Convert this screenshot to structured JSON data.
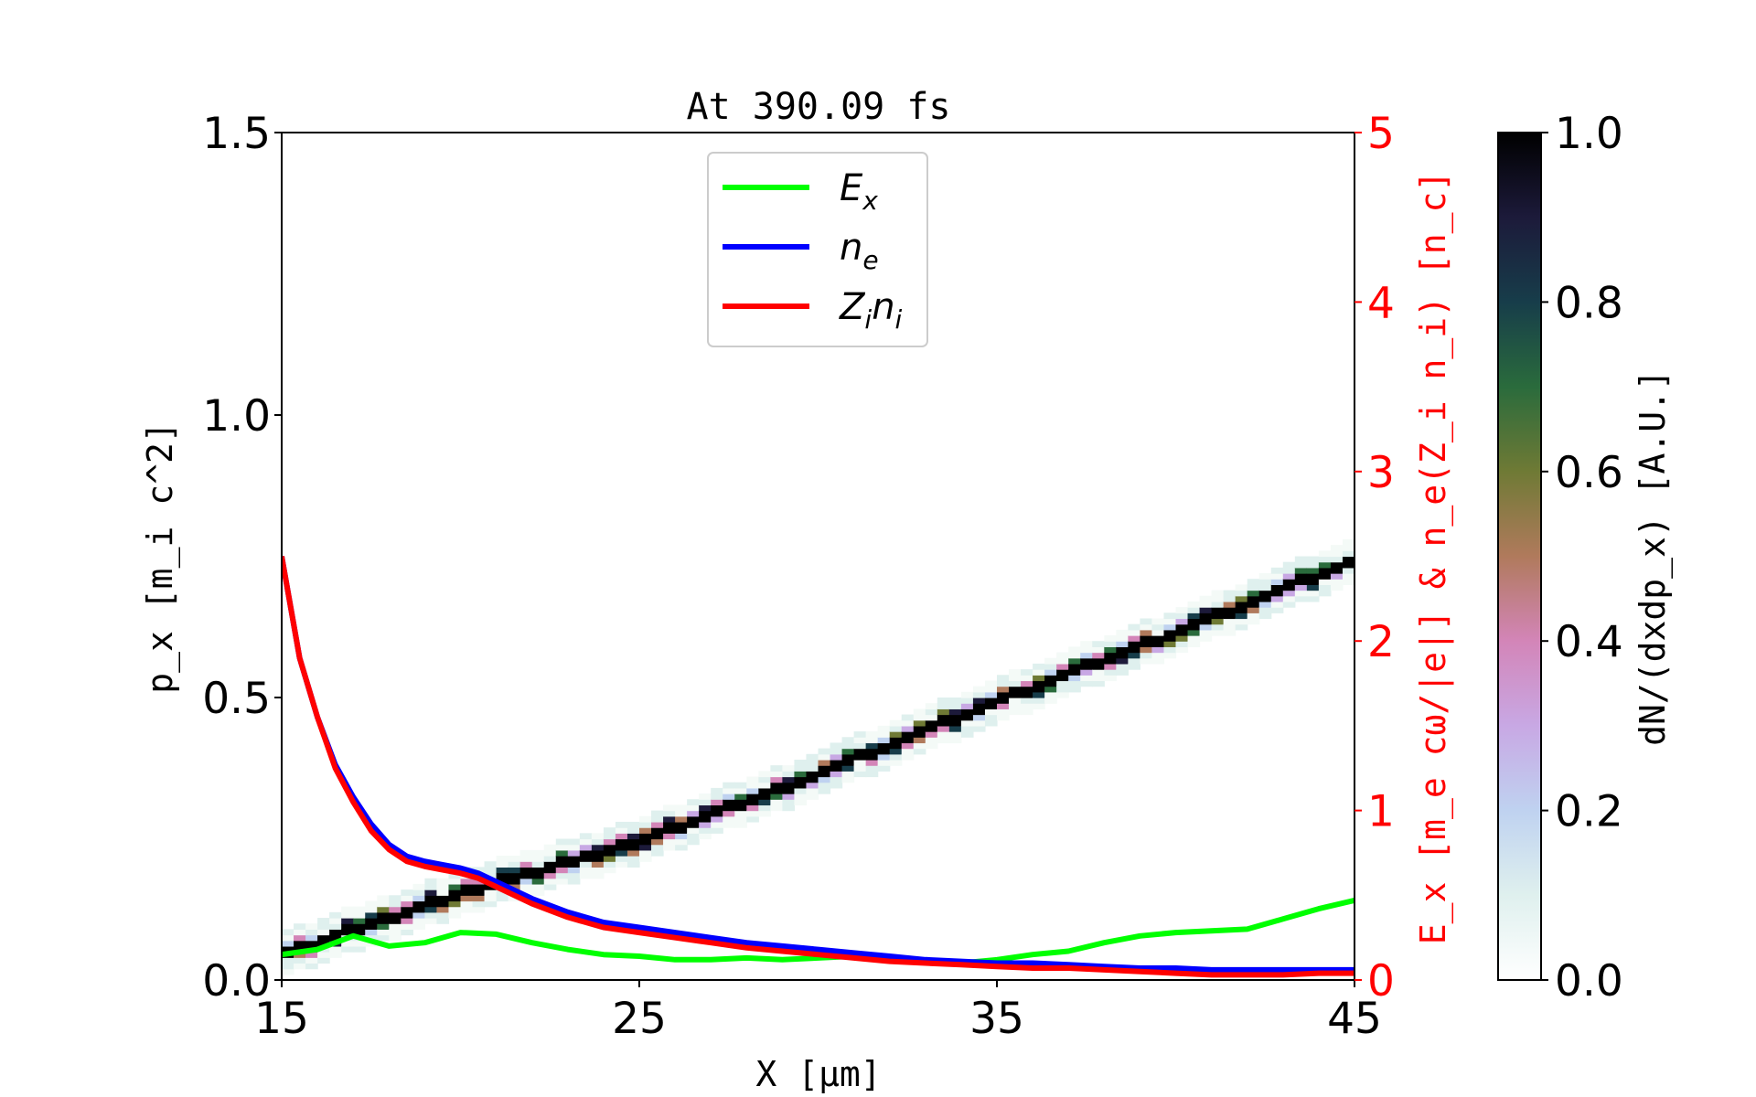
{
  "chart_data": {
    "type": "line",
    "title": "At 390.09 fs",
    "xlabel": "X [μm]",
    "ylabel": "p_x [m_i c^2]",
    "ylabel_right": "E_x [m_e cω/|e|] & n_e(Z_i n_i) [n_c]",
    "colorbar_label": "dN/(dxdp_x) [A.U.]",
    "xlim": [
      15,
      45
    ],
    "ylim": [
      0,
      1.5
    ],
    "ylim_right": [
      0,
      5
    ],
    "clim": [
      0,
      1
    ],
    "xticks": [
      "15",
      "25",
      "35",
      "45"
    ],
    "yticks": [
      "0.0",
      "0.5",
      "1.0",
      "1.5"
    ],
    "yticks_right": [
      "0",
      "1",
      "2",
      "3",
      "4",
      "5"
    ],
    "cticks": [
      "0.0",
      "0.2",
      "0.4",
      "0.6",
      "0.8",
      "1.0"
    ],
    "grid": false,
    "legend_position": "top-center",
    "colors": {
      "right_axis": "#ff0000",
      "colormap": "cubehelix_r"
    },
    "phase_space_band": {
      "x": [
        15,
        20,
        25,
        30,
        35,
        40,
        45
      ],
      "px": [
        0.05,
        0.16,
        0.25,
        0.37,
        0.5,
        0.62,
        0.75
      ]
    },
    "series": [
      {
        "name": "E_x",
        "label_main": "E",
        "label_sub": "x",
        "color": "#00ff00",
        "axis": "right",
        "x": [
          15,
          16,
          17,
          18,
          19,
          20,
          21,
          22,
          23,
          24,
          25,
          26,
          27,
          28,
          29,
          30,
          31,
          32,
          33,
          34,
          35,
          36,
          37,
          38,
          39,
          40,
          41,
          42,
          43,
          44,
          45
        ],
        "y": [
          0.15,
          0.18,
          0.26,
          0.2,
          0.22,
          0.28,
          0.27,
          0.22,
          0.18,
          0.15,
          0.14,
          0.12,
          0.12,
          0.13,
          0.12,
          0.13,
          0.14,
          0.12,
          0.11,
          0.1,
          0.12,
          0.15,
          0.17,
          0.22,
          0.26,
          0.28,
          0.29,
          0.3,
          0.36,
          0.42,
          0.47
        ]
      },
      {
        "name": "n_e",
        "label_main": "n",
        "label_sub": "e",
        "color": "#0000ff",
        "axis": "right",
        "x": [
          15,
          15.5,
          16,
          16.5,
          17,
          17.5,
          18,
          18.5,
          19,
          19.5,
          20,
          20.5,
          21,
          22,
          23,
          24,
          25,
          26,
          27,
          28,
          29,
          30,
          31,
          32,
          33,
          34,
          35,
          36,
          37,
          38,
          39,
          40,
          41,
          42,
          43,
          44,
          45
        ],
        "y": [
          2.5,
          1.9,
          1.55,
          1.27,
          1.08,
          0.92,
          0.8,
          0.73,
          0.7,
          0.68,
          0.66,
          0.63,
          0.58,
          0.48,
          0.4,
          0.34,
          0.31,
          0.28,
          0.25,
          0.22,
          0.2,
          0.18,
          0.16,
          0.14,
          0.12,
          0.11,
          0.1,
          0.1,
          0.09,
          0.08,
          0.07,
          0.07,
          0.06,
          0.06,
          0.06,
          0.06,
          0.06
        ]
      },
      {
        "name": "Z_i n_i",
        "label_main": "Z",
        "label_sub": "i",
        "label_main2": "n",
        "label_sub2": "i",
        "color": "#ff0000",
        "axis": "right",
        "x": [
          15,
          15.5,
          16,
          16.5,
          17,
          17.5,
          18,
          18.5,
          19,
          19.5,
          20,
          20.5,
          21,
          22,
          23,
          24,
          25,
          26,
          27,
          28,
          29,
          30,
          31,
          32,
          33,
          34,
          35,
          36,
          37,
          38,
          39,
          40,
          41,
          42,
          43,
          44,
          45
        ],
        "y": [
          2.5,
          1.9,
          1.55,
          1.25,
          1.05,
          0.88,
          0.77,
          0.7,
          0.67,
          0.65,
          0.63,
          0.6,
          0.55,
          0.45,
          0.37,
          0.31,
          0.28,
          0.25,
          0.22,
          0.19,
          0.17,
          0.15,
          0.13,
          0.11,
          0.1,
          0.09,
          0.08,
          0.07,
          0.07,
          0.06,
          0.05,
          0.04,
          0.03,
          0.03,
          0.03,
          0.04,
          0.04
        ]
      }
    ]
  }
}
